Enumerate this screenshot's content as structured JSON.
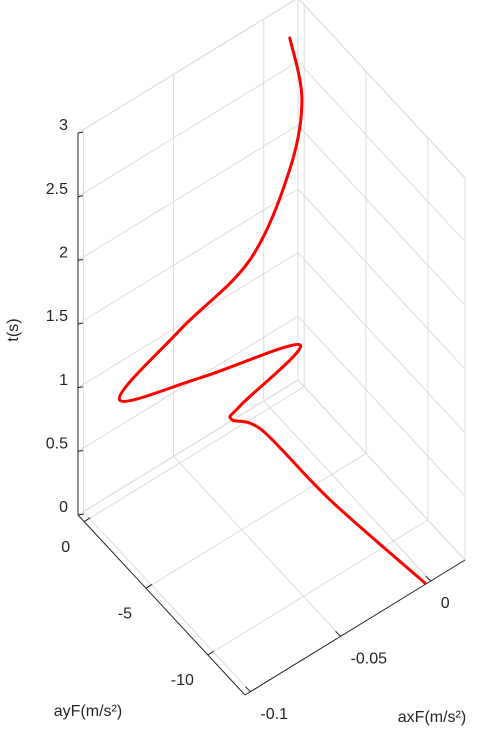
{
  "chart_data": {
    "type": "line3d",
    "color": "#ff0000",
    "grid": true,
    "xlabel": "axF(m/s²)",
    "ylabel": "ayF(m/s²)",
    "zlabel": "t(s)",
    "x": [
      -0.0027,
      -0.0215,
      -0.0352,
      -0.0466,
      -0.0431,
      -0.0105,
      -0.0609,
      -0.1006,
      -0.0648,
      -0.0337,
      -0.011,
      -0.0005,
      0.003
    ],
    "y": [
      -12.93,
      -8.0,
      -4.5,
      -3.7,
      -3.9,
      -3.97,
      -3.22,
      -2.5,
      -2.17,
      -3.3,
      -3.2,
      -2.66,
      -1.17
    ],
    "z": [
      0,
      0.3,
      0.6,
      0.7,
      0.8,
      1.0,
      1.1,
      1.2,
      1.4,
      1.8,
      2.3,
      2.7,
      3
    ],
    "xlim": [
      -0.103,
      0.019
    ],
    "xticks": [
      -0.1,
      -0.05,
      0
    ],
    "ylim": [
      -13,
      0.5
    ],
    "yticks": [
      0,
      -5,
      -10
    ],
    "zlim": [
      0,
      3
    ],
    "zticks": [
      0,
      0.5,
      1,
      1.5,
      2,
      2.5,
      3
    ]
  }
}
